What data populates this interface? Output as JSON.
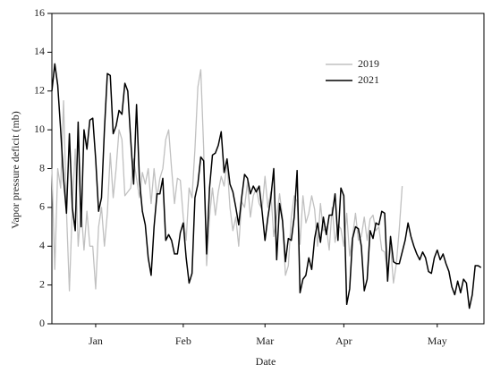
{
  "chart_data": {
    "type": "line",
    "xlabel": "Date",
    "ylabel": "Vapor pressure deficit (mb)",
    "xlim": [
      0,
      148
    ],
    "xticks": [
      {
        "value": 15,
        "label": "Jan"
      },
      {
        "value": 45,
        "label": "Feb"
      },
      {
        "value": 73,
        "label": "Mar"
      },
      {
        "value": 100,
        "label": "Apr"
      },
      {
        "value": 132,
        "label": "May"
      }
    ],
    "ylim": [
      0,
      16
    ],
    "yticks": [
      0,
      2,
      4,
      6,
      8,
      10,
      12,
      14,
      16
    ],
    "grid": false,
    "legend": "upper right",
    "series": [
      {
        "name": "2019",
        "color": "#c0c0c0",
        "x": [
          0,
          1,
          2,
          3,
          4,
          5,
          6,
          7,
          8,
          9,
          10,
          11,
          12,
          13,
          14,
          15,
          16,
          17,
          18,
          19,
          20,
          21,
          22,
          23,
          24,
          25,
          26,
          27,
          28,
          29,
          30,
          31,
          32,
          33,
          34,
          35,
          36,
          37,
          38,
          39,
          40,
          41,
          42,
          43,
          44,
          45,
          46,
          47,
          48,
          49,
          50,
          51,
          52,
          53,
          54,
          55,
          56,
          57,
          58,
          59,
          60,
          61,
          62,
          63,
          64,
          65,
          66,
          67,
          68,
          69,
          70,
          71,
          72,
          73,
          74,
          75,
          76,
          77,
          78,
          79,
          80,
          81,
          82,
          83,
          84,
          85,
          86,
          87,
          88,
          89,
          90,
          91,
          92,
          93,
          94,
          95,
          96,
          97,
          98,
          99,
          100,
          101,
          102,
          103,
          104,
          105,
          106,
          107,
          108,
          109,
          110,
          111,
          112,
          113,
          114,
          115,
          116,
          117,
          118,
          119,
          120
        ],
        "values": [
          8,
          2.8,
          8,
          7,
          11.5,
          5.8,
          1.7,
          6,
          9,
          4,
          6,
          3.8,
          5.8,
          4,
          4,
          1.8,
          5,
          6,
          4,
          5.7,
          8.8,
          6.5,
          8,
          10,
          9.5,
          6.6,
          6.8,
          7,
          8.5,
          7.5,
          6.5,
          7.8,
          7.2,
          8,
          6.2,
          8,
          6.5,
          7.5,
          8,
          9.5,
          10,
          8,
          6.2,
          7.5,
          7.4,
          5.5,
          4.3,
          7,
          6.5,
          9,
          12.2,
          13.1,
          9,
          3,
          5.5,
          7,
          5.6,
          6.8,
          7.6,
          7.1,
          8.3,
          6,
          4.8,
          5.5,
          4,
          6.3,
          6,
          7.3,
          5.5,
          6.6,
          7,
          6.2,
          5.9,
          7.6,
          6,
          6.8,
          4.5,
          5.5,
          6.7,
          5.5,
          2.5,
          3,
          5.5,
          6.6,
          6.3,
          4.1,
          6.6,
          5.2,
          5.7,
          6.6,
          5.9,
          4,
          6.2,
          4.8,
          5,
          3.8,
          6,
          4.2,
          5.1,
          4.9,
          4,
          5.7,
          3.5,
          4.5,
          5.7,
          4.3,
          4.5,
          5.5,
          4.3,
          5.4,
          5.6,
          4.8,
          5,
          3.8,
          3.7,
          2.6,
          4,
          2.1,
          3.1,
          4.9,
          7.1
        ]
      },
      {
        "name": "2021",
        "color": "#000000",
        "x": [
          0,
          1,
          2,
          3,
          4,
          5,
          6,
          7,
          8,
          9,
          10,
          11,
          12,
          13,
          14,
          15,
          16,
          17,
          18,
          19,
          20,
          21,
          22,
          23,
          24,
          25,
          26,
          27,
          28,
          29,
          30,
          31,
          32,
          33,
          34,
          35,
          36,
          37,
          38,
          39,
          40,
          41,
          42,
          43,
          44,
          45,
          46,
          47,
          48,
          49,
          50,
          51,
          52,
          53,
          54,
          55,
          56,
          57,
          58,
          59,
          60,
          61,
          62,
          63,
          64,
          65,
          66,
          67,
          68,
          69,
          70,
          71,
          72,
          73,
          74,
          75,
          76,
          77,
          78,
          79,
          80,
          81,
          82,
          83,
          84,
          85,
          86,
          87,
          88,
          89,
          90,
          91,
          92,
          93,
          94,
          95,
          96,
          97,
          98,
          99,
          100,
          101,
          102,
          103,
          104,
          105,
          106,
          107,
          108,
          109,
          110,
          111,
          112,
          113,
          114,
          115,
          116,
          117,
          118,
          119,
          120,
          121,
          122,
          123,
          124,
          125,
          126,
          127,
          128,
          129,
          130,
          131,
          132,
          133,
          134,
          135,
          136,
          137,
          138,
          139,
          140,
          141,
          142,
          143,
          144,
          145,
          146,
          147
        ],
        "values": [
          12,
          13.4,
          12.3,
          10,
          7.5,
          5.7,
          9.8,
          6,
          4.8,
          10.4,
          5,
          10,
          9,
          10.5,
          10.6,
          8.5,
          5.8,
          6.5,
          10,
          12.9,
          12.8,
          9.8,
          10.2,
          11,
          10.8,
          12.4,
          12,
          9.5,
          7.2,
          11.3,
          7.4,
          5.8,
          5.1,
          3.4,
          2.5,
          5,
          6.7,
          6.7,
          7.5,
          4.3,
          4.6,
          4.3,
          3.6,
          3.6,
          4.7,
          5.2,
          3.4,
          2.1,
          2.6,
          6.5,
          7.2,
          8.6,
          8.4,
          3.6,
          7,
          8.7,
          8.8,
          9.2,
          9.9,
          7.8,
          8.5,
          7.2,
          6.8,
          6,
          5.1,
          6.5,
          7.7,
          7.5,
          6.7,
          7.1,
          6.8,
          7.1,
          5.8,
          4.3,
          5.5,
          6.5,
          8,
          3.3,
          6.2,
          5.3,
          3.2,
          4.4,
          4.3,
          5.5,
          7.9,
          1.6,
          2.3,
          2.5,
          3.4,
          2.8,
          4.4,
          5.2,
          4.2,
          5.5,
          4.6,
          5.6,
          5.6,
          6.7,
          4.3,
          7,
          6.6,
          1,
          1.8,
          4.4,
          5,
          4.9,
          4,
          1.7,
          2.3,
          4.8,
          4.4,
          5.2,
          5.1,
          5.8,
          5.7,
          2.2,
          4.5,
          3.2,
          3.1,
          3.1,
          3.7,
          4.3,
          5.2,
          4.5,
          4,
          3.6,
          3.3,
          3.7,
          3.4,
          2.7,
          2.6,
          3.4,
          3.8,
          3.3,
          3.6,
          3.1,
          2.7,
          1.9,
          1.5,
          2.2,
          1.6,
          2.3,
          2.1,
          0.8,
          1.5,
          3,
          3,
          2.9
        ]
      }
    ]
  }
}
